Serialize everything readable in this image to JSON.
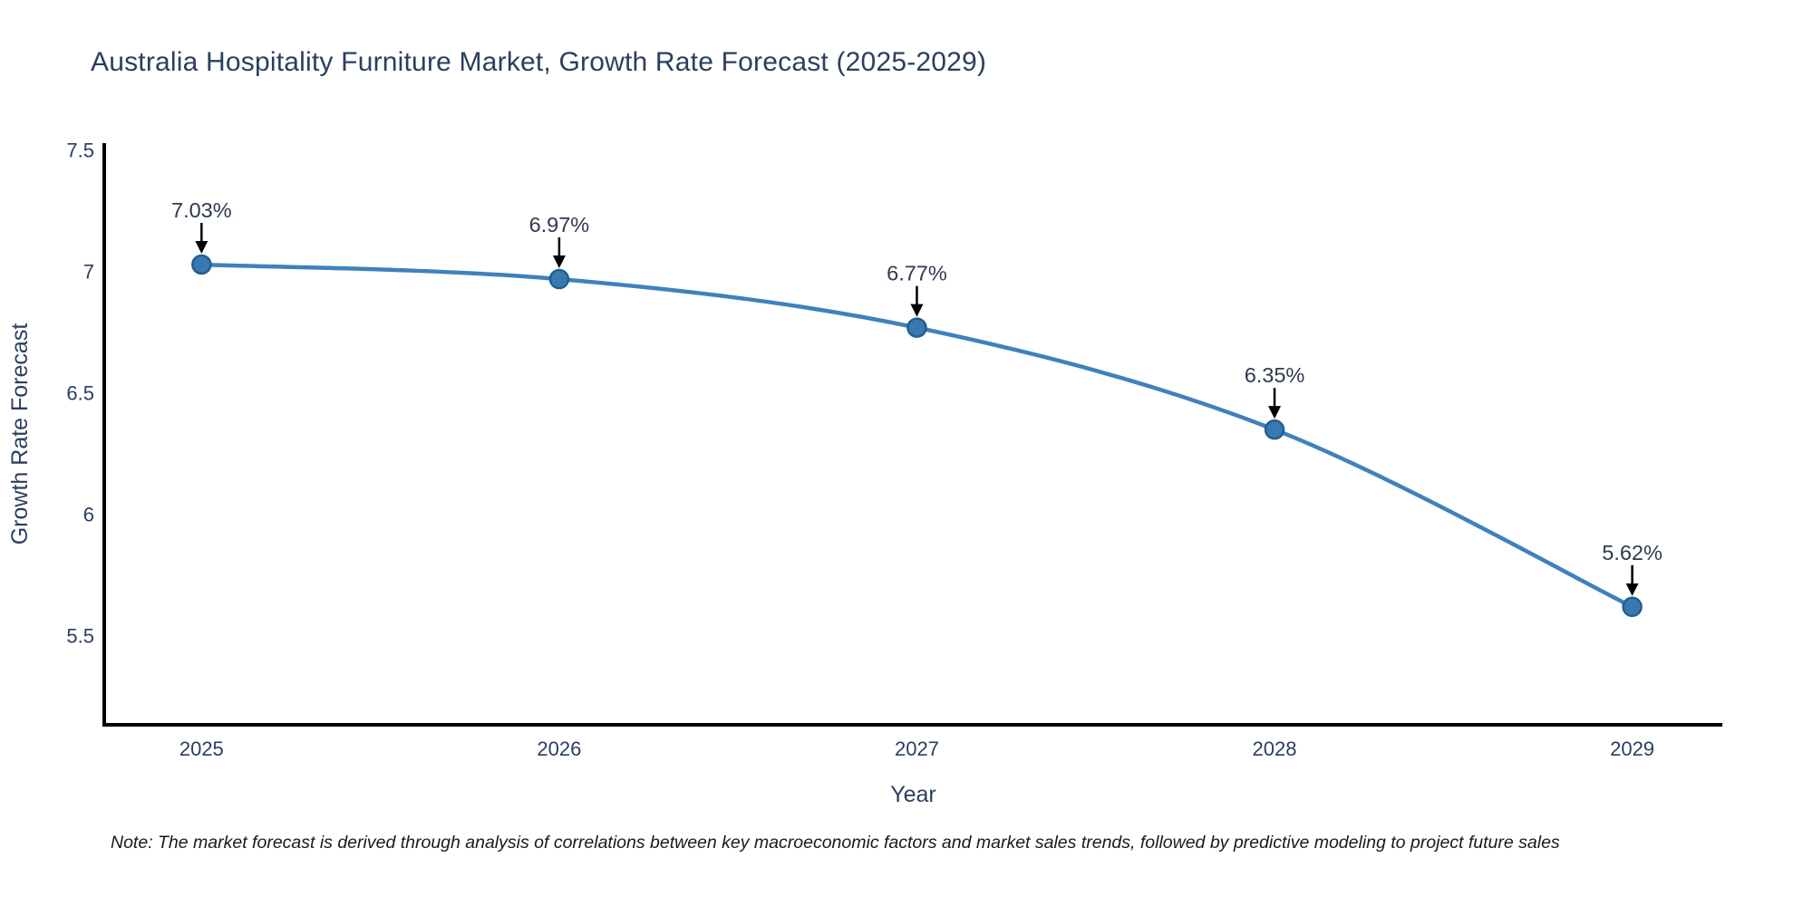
{
  "page": {
    "note": "Note: The market forecast is derived through analysis of correlations between key macroeconomic factors and market sales trends, followed by predictive modeling to project future sales"
  },
  "chart_data": {
    "type": "line",
    "title": "Australia Hospitality Furniture Market, Growth Rate Forecast (2025-2029)",
    "x": [
      2025,
      2026,
      2027,
      2028,
      2029
    ],
    "x_labels": [
      "2025",
      "2026",
      "2027",
      "2028",
      "2029"
    ],
    "series": [
      {
        "name": "Growth Rate Forecast",
        "values": [
          7.03,
          6.97,
          6.77,
          6.35,
          5.62
        ]
      }
    ],
    "point_labels": [
      "7.03%",
      "6.97%",
      "6.77%",
      "6.35%",
      "5.62%"
    ],
    "xlabel": "Year",
    "ylabel": "Growth Rate Forecast",
    "yticks": [
      5.5,
      6,
      6.5,
      7,
      7.5
    ],
    "ytick_labels": [
      "5.5",
      "6",
      "6.5",
      "7",
      "7.5"
    ],
    "ylim": [
      5.134,
      7.53
    ],
    "xlim": [
      2024.728,
      2029.252
    ],
    "grid": false,
    "legend": "none",
    "line_shape": "spline",
    "markers": true,
    "colors": {
      "line": "#3f81bd",
      "marker_fill": "#3879b4",
      "marker_edge": "#235e8e",
      "axis_line": "#000000",
      "text": "#2a3f5f",
      "annotation_text": "#2e3a4d",
      "annotation_arrow": "#000000"
    }
  }
}
